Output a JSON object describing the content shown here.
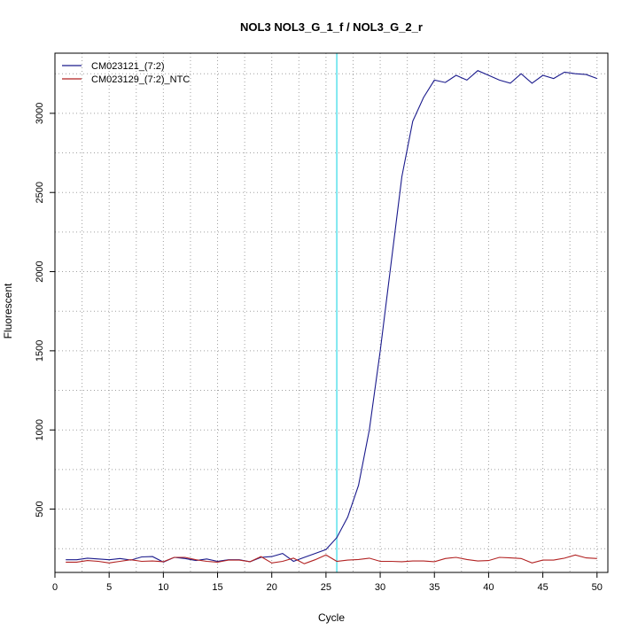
{
  "chart_data": {
    "type": "line",
    "title": "NOL3  NOL3_G_1_f / NOL3_G_2_r",
    "xlabel": "Cycle",
    "ylabel": "Fluorescent",
    "xlim": [
      0,
      51
    ],
    "ylim": [
      100,
      3380
    ],
    "x_ticks": [
      0,
      5,
      10,
      15,
      20,
      25,
      30,
      35,
      40,
      45,
      50
    ],
    "y_ticks": [
      500,
      1000,
      1500,
      2000,
      2500,
      3000
    ],
    "grid": true,
    "legend_position": "top-left",
    "threshold_line": {
      "x": 26,
      "color": "#7fe8f0"
    },
    "x": [
      1,
      2,
      3,
      4,
      5,
      6,
      7,
      8,
      9,
      10,
      11,
      12,
      13,
      14,
      15,
      16,
      17,
      18,
      19,
      20,
      21,
      22,
      23,
      24,
      25,
      26,
      27,
      28,
      29,
      30,
      31,
      32,
      33,
      34,
      35,
      36,
      37,
      38,
      39,
      40,
      41,
      42,
      43,
      44,
      45,
      46,
      47,
      48,
      49,
      50
    ],
    "series": [
      {
        "name": "CM023121_(7:2)",
        "color": "#1a1a8c",
        "values": [
          180,
          180,
          190,
          185,
          180,
          188,
          178,
          198,
          200,
          165,
          195,
          188,
          175,
          185,
          170,
          180,
          180,
          168,
          195,
          200,
          220,
          170,
          195,
          220,
          245,
          320,
          450,
          650,
          1000,
          1500,
          2050,
          2600,
          2950,
          3100,
          3210,
          3195,
          3240,
          3210,
          3270,
          3240,
          3210,
          3190,
          3250,
          3190,
          3240,
          3220,
          3260,
          3250,
          3245,
          3220
        ]
      },
      {
        "name": "CM023129_(7:2)_NTC",
        "color": "#b22222",
        "values": [
          165,
          165,
          175,
          170,
          160,
          170,
          180,
          170,
          172,
          168,
          195,
          195,
          180,
          170,
          165,
          178,
          178,
          168,
          200,
          160,
          170,
          190,
          155,
          180,
          210,
          170,
          178,
          182,
          190,
          170,
          170,
          168,
          172,
          172,
          168,
          188,
          195,
          182,
          172,
          175,
          195,
          192,
          188,
          160,
          178,
          178,
          190,
          210,
          192,
          188
        ]
      }
    ]
  }
}
